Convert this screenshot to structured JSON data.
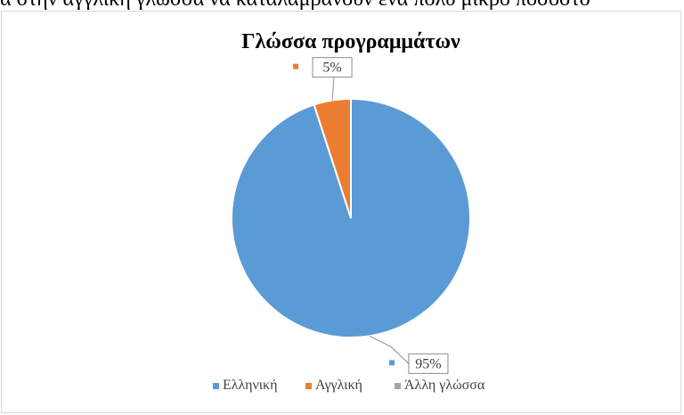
{
  "page": {
    "top_text": "α στην αγγλική γλώσσα να καταλαμβάνουν ένα πολύ μικρό ποσοστό"
  },
  "chart_data": {
    "type": "pie",
    "title": "Γλώσσα προγραμμάτων",
    "categories": [
      "Ελληνική",
      "Αγγλική",
      "Άλλη γλώσσα"
    ],
    "values": [
      95,
      5,
      0
    ],
    "data_labels": [
      "95%",
      "5%",
      ""
    ],
    "colors": [
      "#5b9bd5",
      "#ed7d31",
      "#a5a5a5"
    ],
    "legend_position": "bottom",
    "grid": false
  }
}
